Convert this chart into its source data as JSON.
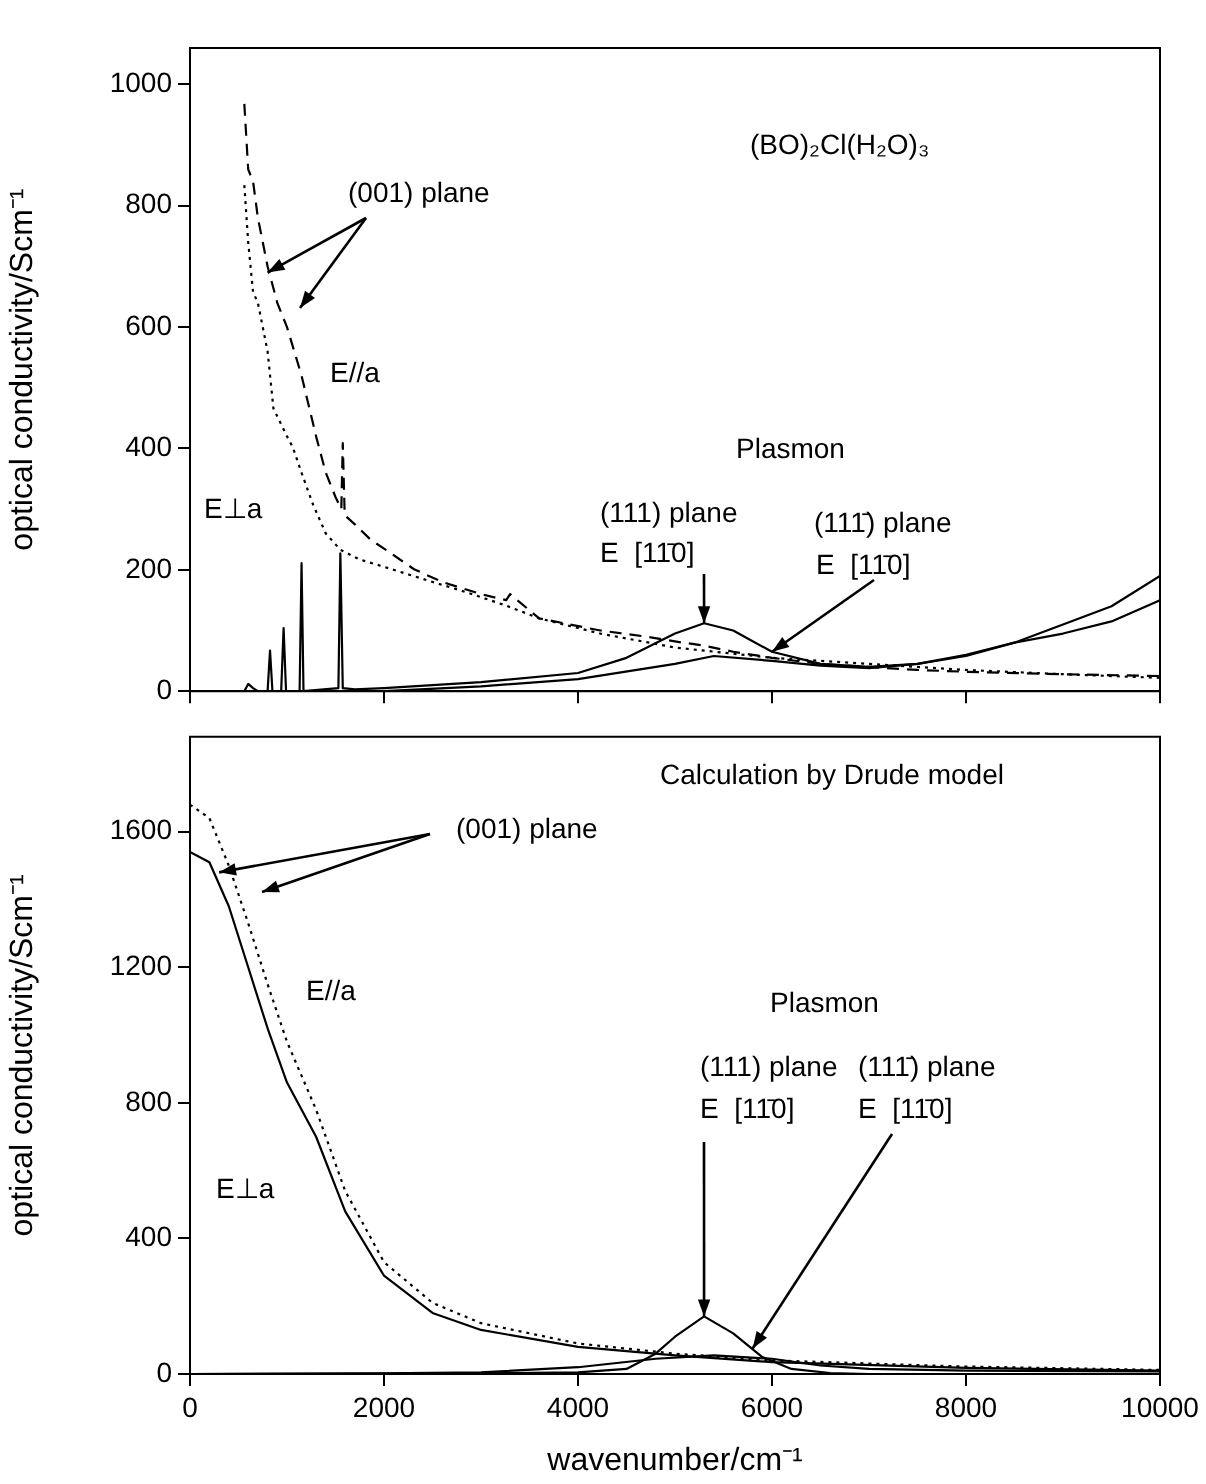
{
  "chart_data": [
    {
      "type": "line",
      "ylabel": "optical conductivity/Scm⁻¹",
      "xlim": [
        0,
        10000
      ],
      "xticks": [
        0,
        2000,
        4000,
        6000,
        8000,
        10000
      ],
      "ylim": [
        0,
        1060
      ],
      "yticks": [
        0,
        200,
        400,
        600,
        800,
        1000
      ],
      "tick_labels": "y",
      "grid": false,
      "legend": false,
      "marker": "none",
      "annotations": [
        "(BO)₂Cl(H₂O)₃",
        {
          "text": "(001) plane",
          "x": 800,
          "y": 690
        },
        "E//a",
        "E⊥a",
        "Plasmon",
        "(111) plane",
        {
          "text": "E  [11̄0]",
          "x": 5300,
          "y": 112
        },
        "(111̄) plane",
        {
          "text": "E  [11̄0]",
          "x": 6000,
          "y": 65
        }
      ],
      "series": [
        {
          "color": "#000000",
          "line_style": "dashed",
          "x": [
            560,
            600,
            650,
            700,
            800,
            900,
            1000,
            1150,
            1300,
            1400,
            1500,
            1560,
            1575,
            1595,
            1700,
            1860,
            2000,
            2310,
            2600,
            3000,
            3260,
            3300,
            3600,
            4230,
            4700,
            5000,
            5300,
            5600,
            6000,
            6500,
            7000,
            7500,
            8000,
            9000,
            10000
          ],
          "values": [
            968,
            860,
            840,
            780,
            700,
            640,
            600,
            520,
            420,
            360,
            320,
            300,
            409,
            290,
            275,
            250,
            235,
            201,
            180,
            160,
            150,
            160,
            120,
            100,
            90,
            82,
            75,
            65,
            55,
            45,
            40,
            35,
            32,
            28,
            25
          ]
        },
        {
          "color": "#000000",
          "line_style": "dotted",
          "x": [
            560,
            600,
            650,
            700,
            800,
            860,
            1000,
            1060,
            1150,
            1270,
            1400,
            1550,
            1750,
            2000,
            2400,
            2850,
            3260,
            3600,
            4230,
            5000,
            6000,
            7000,
            8000,
            9000,
            10000
          ],
          "values": [
            834,
            740,
            658,
            640,
            560,
            466,
            420,
            402,
            360,
            307,
            260,
            233,
            217,
            205,
            185,
            163,
            141,
            120,
            95,
            72,
            55,
            45,
            35,
            28,
            22
          ]
        },
        {
          "color": "#000000",
          "line_style": "solid",
          "x": [
            560,
            600,
            650,
            700,
            800,
            825,
            850,
            940,
            965,
            990,
            1130,
            1150,
            1170,
            1530,
            1550,
            1575,
            1700,
            2000,
            3000,
            4000,
            4500,
            5000,
            5300,
            5600,
            6000,
            6500,
            7000,
            7500,
            8000,
            8500,
            9000,
            9500,
            10000
          ],
          "values": [
            0,
            12,
            5,
            0,
            0,
            67,
            0,
            0,
            104,
            0,
            0,
            211,
            0,
            5,
            227,
            5,
            3,
            5,
            15,
            30,
            55,
            95,
            112,
            100,
            65,
            45,
            40,
            45,
            60,
            80,
            110,
            140,
            190
          ]
        },
        {
          "color": "#000000",
          "line_style": "solid",
          "x": [
            2000,
            3000,
            4000,
            5000,
            5400,
            6000,
            6500,
            7000,
            7500,
            8000,
            8500,
            9000,
            9500,
            10000
          ],
          "values": [
            0,
            8,
            20,
            45,
            58,
            50,
            42,
            38,
            45,
            58,
            80,
            95,
            115,
            150
          ]
        }
      ]
    },
    {
      "type": "line",
      "xlabel": "wavenumber/cm⁻¹",
      "ylabel": "optical conductivity/Scm⁻¹",
      "xlim": [
        0,
        10000
      ],
      "xticks": [
        0,
        2000,
        4000,
        6000,
        8000,
        10000
      ],
      "ylim": [
        0,
        1880
      ],
      "yticks": [
        0,
        400,
        800,
        1200,
        1600
      ],
      "grid": false,
      "legend": false,
      "marker": "none",
      "annotations": [
        "Calculation by Drude model",
        {
          "text": "(001) plane",
          "x": 300,
          "y": 1480
        },
        "E//a",
        "E⊥a",
        "Plasmon",
        "(111) plane",
        {
          "text": "E  [11̄0]",
          "x": 5300,
          "y": 170
        },
        "(111̄) plane",
        {
          "text": "E  [11̄0]",
          "x": 5800,
          "y": 75
        }
      ],
      "series": [
        {
          "color": "#000000",
          "line_style": "dotted",
          "x": [
            0,
            200,
            400,
            600,
            800,
            1000,
            1300,
            1600,
            2000,
            2500,
            3000,
            4000,
            5000,
            6000,
            8000,
            10000
          ],
          "values": [
            1680,
            1640,
            1500,
            1330,
            1150,
            980,
            780,
            540,
            330,
            210,
            150,
            90,
            60,
            40,
            22,
            12
          ]
        },
        {
          "color": "#000000",
          "line_style": "solid",
          "x": [
            0,
            200,
            400,
            600,
            800,
            1000,
            1300,
            1600,
            2000,
            2500,
            3000,
            4000,
            5000,
            6000,
            8000,
            10000
          ],
          "values": [
            1540,
            1510,
            1380,
            1200,
            1020,
            860,
            700,
            480,
            290,
            180,
            130,
            80,
            55,
            35,
            18,
            10
          ]
        },
        {
          "color": "#000000",
          "line_style": "solid",
          "x": [
            0,
            3000,
            4000,
            4500,
            4800,
            5000,
            5300,
            5600,
            5900,
            6200,
            6600,
            7000,
            10000
          ],
          "values": [
            0,
            2,
            5,
            15,
            60,
            110,
            170,
            120,
            50,
            15,
            3,
            0,
            0
          ]
        },
        {
          "color": "#000000",
          "line_style": "solid",
          "x": [
            0,
            2000,
            3000,
            4000,
            4800,
            5400,
            6000,
            6500,
            7000,
            8000,
            10000
          ],
          "values": [
            0,
            2,
            5,
            20,
            45,
            55,
            45,
            25,
            15,
            10,
            8
          ]
        }
      ]
    }
  ]
}
